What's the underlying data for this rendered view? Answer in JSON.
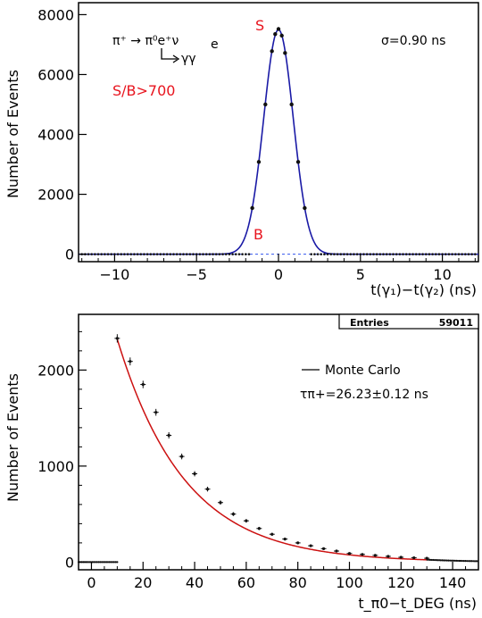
{
  "chart_data": [
    {
      "type": "scatter",
      "xlabel": "t(γ₁)−t(γ₂) (ns)",
      "ylabel": "Number of Events",
      "xlim": [
        -12.2,
        12.2
      ],
      "ylim": [
        -250,
        8400
      ],
      "xticks": [
        -10,
        -5,
        0,
        5,
        10
      ],
      "yticks": [
        0,
        2000,
        4000,
        6000,
        8000
      ],
      "annotations": {
        "signal": "S",
        "background": "B",
        "ratio": "S/B>700",
        "sigma": "σ=0.90 ns",
        "decay_line1": "π⁺ → π⁰e⁺ν",
        "decay_line2": "γγ"
      },
      "fit": {
        "amplitude": 7500,
        "mean": 0.0,
        "sigma": 0.9,
        "color": "#1a1aa6"
      },
      "background_level": 0,
      "x": [
        -1.6,
        -1.2,
        -0.8,
        -0.4,
        -0.2,
        0.0,
        0.2,
        0.4,
        0.8,
        1.2,
        1.6
      ],
      "y": [
        1540,
        3080,
        5000,
        6780,
        7350,
        7520,
        7300,
        6720,
        5000,
        3080,
        1540
      ]
    },
    {
      "type": "scatter",
      "xlabel": "t_π0−t_DEG (ns)",
      "ylabel": "Number of Events",
      "xlim": [
        -5,
        150
      ],
      "ylim": [
        -80,
        2580
      ],
      "xticks": [
        0,
        20,
        40,
        60,
        80,
        100,
        120,
        140
      ],
      "yticks": [
        0,
        1000,
        2000
      ],
      "stats": {
        "label": "Entries",
        "value": "59011"
      },
      "legend": {
        "label": "Monte Carlo",
        "tau": "τπ+=26.23±0.12 ns"
      },
      "fit": {
        "amplitude": 3400,
        "tau": 26.23,
        "offset": 0,
        "x_start": 10,
        "x_end": 130,
        "color": "#cc1111"
      },
      "x": [
        10,
        15,
        20,
        25,
        30,
        35,
        40,
        45,
        50,
        55,
        60,
        65,
        70,
        75,
        80,
        85,
        90,
        95,
        100,
        105,
        110,
        115,
        120,
        125,
        130
      ],
      "y": [
        2330,
        2090,
        1850,
        1560,
        1320,
        1100,
        920,
        760,
        620,
        500,
        430,
        350,
        290,
        240,
        200,
        170,
        140,
        115,
        90,
        80,
        70,
        60,
        50,
        45,
        40
      ]
    }
  ]
}
